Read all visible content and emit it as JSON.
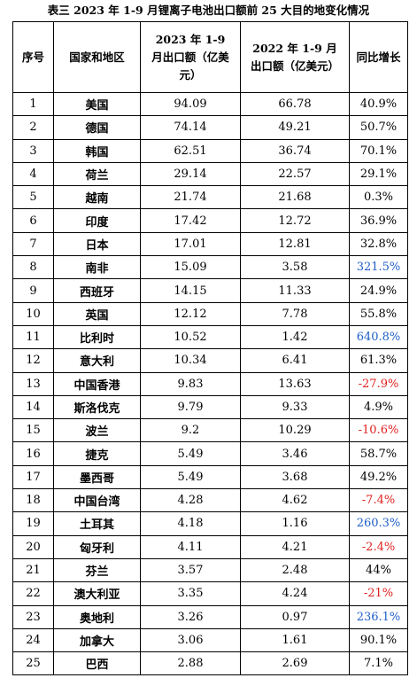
{
  "title": "表三 2023 年 1-9 月锂离子电池出口额前 25 大目的地变化情况",
  "headers": {
    "seq": "序号",
    "country": "国家和地区",
    "y2023": "2023 年 1-9 月出口额（亿美元）",
    "y2022": "2022 年 1-9 月出口额（亿美元）",
    "yoy": "同比增长"
  },
  "rows": [
    {
      "seq": "1",
      "country": "美国",
      "v2023": "94.09",
      "v2022": "66.78",
      "yoy": "40.9%",
      "style": "normal"
    },
    {
      "seq": "2",
      "country": "德国",
      "v2023": "74.14",
      "v2022": "49.21",
      "yoy": "50.7%",
      "style": "normal"
    },
    {
      "seq": "3",
      "country": "韩国",
      "v2023": "62.51",
      "v2022": "36.74",
      "yoy": "70.1%",
      "style": "normal"
    },
    {
      "seq": "4",
      "country": "荷兰",
      "v2023": "29.14",
      "v2022": "22.57",
      "yoy": "29.1%",
      "style": "normal"
    },
    {
      "seq": "5",
      "country": "越南",
      "v2023": "21.74",
      "v2022": "21.68",
      "yoy": "0.3%",
      "style": "normal"
    },
    {
      "seq": "6",
      "country": "印度",
      "v2023": "17.42",
      "v2022": "12.72",
      "yoy": "36.9%",
      "style": "normal"
    },
    {
      "seq": "7",
      "country": "日本",
      "v2023": "17.01",
      "v2022": "12.81",
      "yoy": "32.8%",
      "style": "normal"
    },
    {
      "seq": "8",
      "country": "南非",
      "v2023": "15.09",
      "v2022": "3.58",
      "yoy": "321.5%",
      "style": "hl"
    },
    {
      "seq": "9",
      "country": "西班牙",
      "v2023": "14.15",
      "v2022": "11.33",
      "yoy": "24.9%",
      "style": "normal"
    },
    {
      "seq": "10",
      "country": "英国",
      "v2023": "12.12",
      "v2022": "7.78",
      "yoy": "55.8%",
      "style": "normal"
    },
    {
      "seq": "11",
      "country": "比利时",
      "v2023": "10.52",
      "v2022": "1.42",
      "yoy": "640.8%",
      "style": "hl"
    },
    {
      "seq": "12",
      "country": "意大利",
      "v2023": "10.34",
      "v2022": "6.41",
      "yoy": "61.3%",
      "style": "normal"
    },
    {
      "seq": "13",
      "country": "中国香港",
      "v2023": "9.83",
      "v2022": "13.63",
      "yoy": "-27.9%",
      "style": "neg"
    },
    {
      "seq": "14",
      "country": "斯洛伐克",
      "v2023": "9.79",
      "v2022": "9.33",
      "yoy": "4.9%",
      "style": "normal"
    },
    {
      "seq": "15",
      "country": "波兰",
      "v2023": "9.2",
      "v2022": "10.29",
      "yoy": "-10.6%",
      "style": "neg"
    },
    {
      "seq": "16",
      "country": "捷克",
      "v2023": "5.49",
      "v2022": "3.46",
      "yoy": "58.7%",
      "style": "normal"
    },
    {
      "seq": "17",
      "country": "墨西哥",
      "v2023": "5.49",
      "v2022": "3.68",
      "yoy": "49.2%",
      "style": "normal"
    },
    {
      "seq": "18",
      "country": "中国台湾",
      "v2023": "4.28",
      "v2022": "4.62",
      "yoy": "-7.4%",
      "style": "neg"
    },
    {
      "seq": "19",
      "country": "土耳其",
      "v2023": "4.18",
      "v2022": "1.16",
      "yoy": "260.3%",
      "style": "hl"
    },
    {
      "seq": "20",
      "country": "匈牙利",
      "v2023": "4.11",
      "v2022": "4.21",
      "yoy": "-2.4%",
      "style": "neg"
    },
    {
      "seq": "21",
      "country": "芬兰",
      "v2023": "3.57",
      "v2022": "2.48",
      "yoy": "44%",
      "style": "normal"
    },
    {
      "seq": "22",
      "country": "澳大利亚",
      "v2023": "3.35",
      "v2022": "4.24",
      "yoy": "-21%",
      "style": "neg"
    },
    {
      "seq": "23",
      "country": "奥地利",
      "v2023": "3.26",
      "v2022": "0.97",
      "yoy": "236.1%",
      "style": "hl"
    },
    {
      "seq": "24",
      "country": "加拿大",
      "v2023": "3.06",
      "v2022": "1.61",
      "yoy": "90.1%",
      "style": "normal"
    },
    {
      "seq": "25",
      "country": "巴西",
      "v2023": "2.88",
      "v2022": "2.69",
      "yoy": "7.1%",
      "style": "normal"
    }
  ],
  "colors": {
    "negative": "#e02020",
    "highlight": "#1f5fc8"
  }
}
